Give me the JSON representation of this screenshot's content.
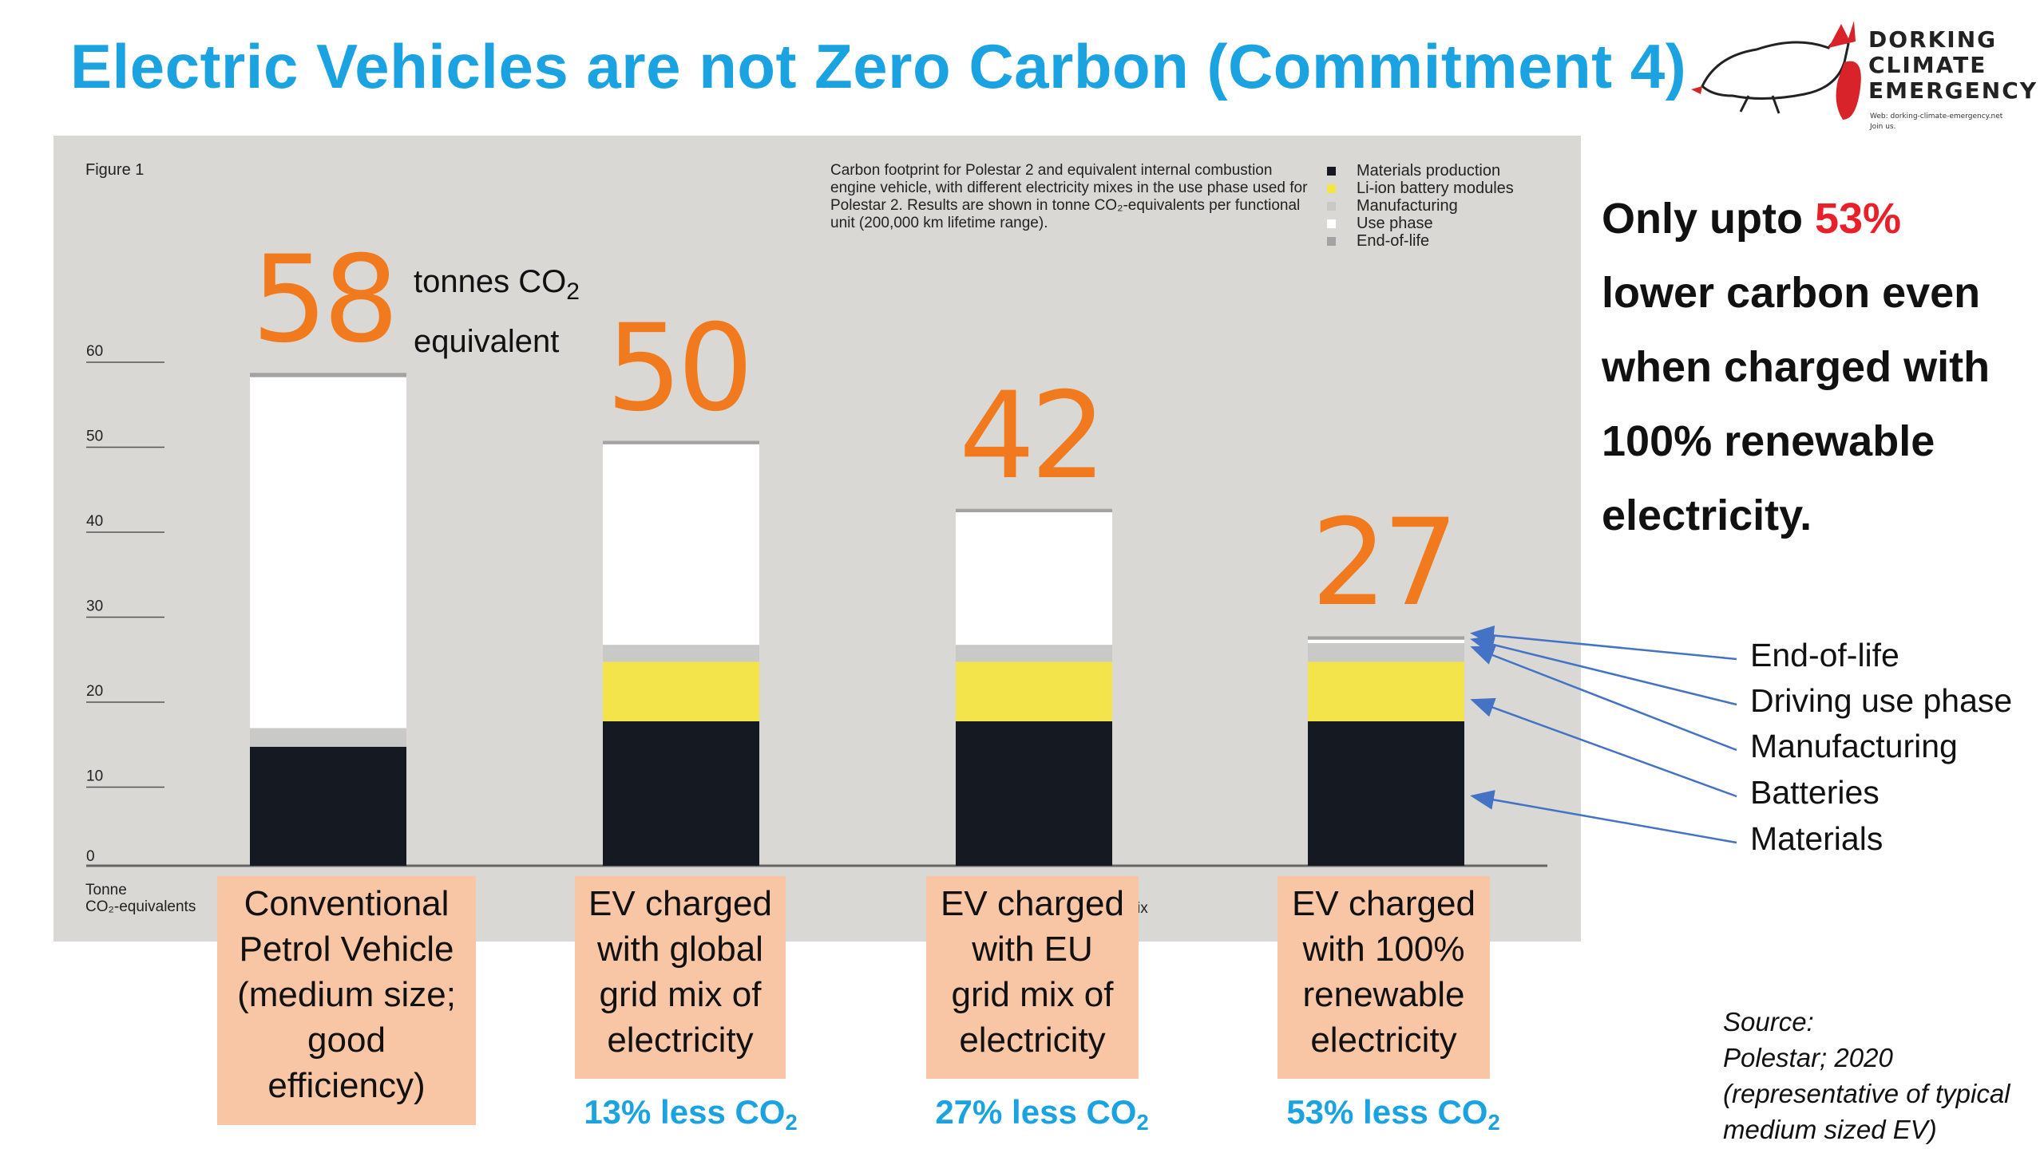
{
  "title": "Electric Vehicles are not Zero Carbon (Commitment 4)",
  "logo": {
    "lines": [
      "DORKING",
      "CLIMATE",
      "EMERGENCY"
    ],
    "web": "Web: dorking-climate-emergency.net",
    "join": "Join us."
  },
  "figure_label": "Figure 1",
  "caption": "Carbon footprint for Polestar 2 and equivalent internal combustion engine vehicle, with different electricity mixes in the use phase used for Polestar 2. Results are shown in tonne CO₂-equivalents per functional unit (200,000 km lifetime range).",
  "legend": [
    {
      "label": "Materials production",
      "color": "#151a22"
    },
    {
      "label": "Li-ion battery modules",
      "color": "#f2e44a"
    },
    {
      "label": "Manufacturing",
      "color": "#c9c9c7"
    },
    {
      "label": "Use phase",
      "color": "#ffffff"
    },
    {
      "label": "End-of-life",
      "color": "#a3a3a3"
    }
  ],
  "y_axis_title_line1": "Tonne",
  "y_axis_title_line2": "CO₂-equivalents",
  "axis_fragment": "ix",
  "tonnes_line1": "tonnes CO",
  "tonnes_sub": "2",
  "tonnes_line2": "equivalent",
  "categories": [
    {
      "lines": [
        "Conventional",
        "Petrol Vehicle",
        "(medium size;",
        "good",
        "efficiency)"
      ]
    },
    {
      "lines": [
        "EV charged",
        "with global",
        "grid mix of",
        "electricity"
      ]
    },
    {
      "lines": [
        "EV charged",
        "with EU",
        "grid mix of",
        "electricity"
      ]
    },
    {
      "lines": [
        "EV charged",
        "with 100%",
        "renewable",
        "electricity"
      ]
    }
  ],
  "reductions": [
    {
      "text": "13% less CO",
      "sub": "2"
    },
    {
      "text": "27% less CO",
      "sub": "2"
    },
    {
      "text": "53% less CO",
      "sub": "2"
    }
  ],
  "note": {
    "pre": "Only upto ",
    "highlight": "53%",
    "lines": [
      "lower carbon even",
      "when charged with",
      "100% renewable",
      "electricity."
    ]
  },
  "components": [
    "End-of-life",
    "Driving use phase",
    "Manufacturing",
    "Batteries",
    "Materials"
  ],
  "source": [
    "Source:",
    "Polestar; 2020",
    "(representative of typical",
    "medium sized EV)"
  ],
  "colors": {
    "materials": "#151a22",
    "batteries": "#f2e44a",
    "manufacturing": "#c9c9c7",
    "use_phase": "#ffffff",
    "end_of_life": "#a3a3a3",
    "total_label": "#f07a1d",
    "accent": "#1aa3e0",
    "arrow": "#4472c4"
  },
  "chart_data": {
    "type": "bar",
    "stacked": true,
    "title": "",
    "xlabel": "",
    "ylabel": "Tonne CO₂-equivalents",
    "ylim": [
      0,
      60
    ],
    "yticks": [
      0,
      10,
      20,
      30,
      40,
      50,
      60
    ],
    "categories": [
      "Conventional Petrol Vehicle (medium size; good efficiency)",
      "EV charged with global grid mix of electricity",
      "EV charged with EU grid mix of electricity",
      "EV charged with 100% renewable electricity"
    ],
    "totals": [
      58,
      50,
      42,
      27
    ],
    "series": [
      {
        "name": "Materials production",
        "values": [
          14,
          17,
          17,
          17
        ]
      },
      {
        "name": "Li-ion battery modules",
        "values": [
          0,
          7,
          7,
          7
        ]
      },
      {
        "name": "Manufacturing",
        "values": [
          2.2,
          2,
          2,
          2.2
        ]
      },
      {
        "name": "Use phase",
        "values": [
          41.3,
          23.6,
          15.6,
          0.4
        ]
      },
      {
        "name": "End-of-life",
        "values": [
          0.5,
          0.4,
          0.4,
          0.4
        ]
      }
    ],
    "legend_position": "top-right",
    "grid": false
  }
}
